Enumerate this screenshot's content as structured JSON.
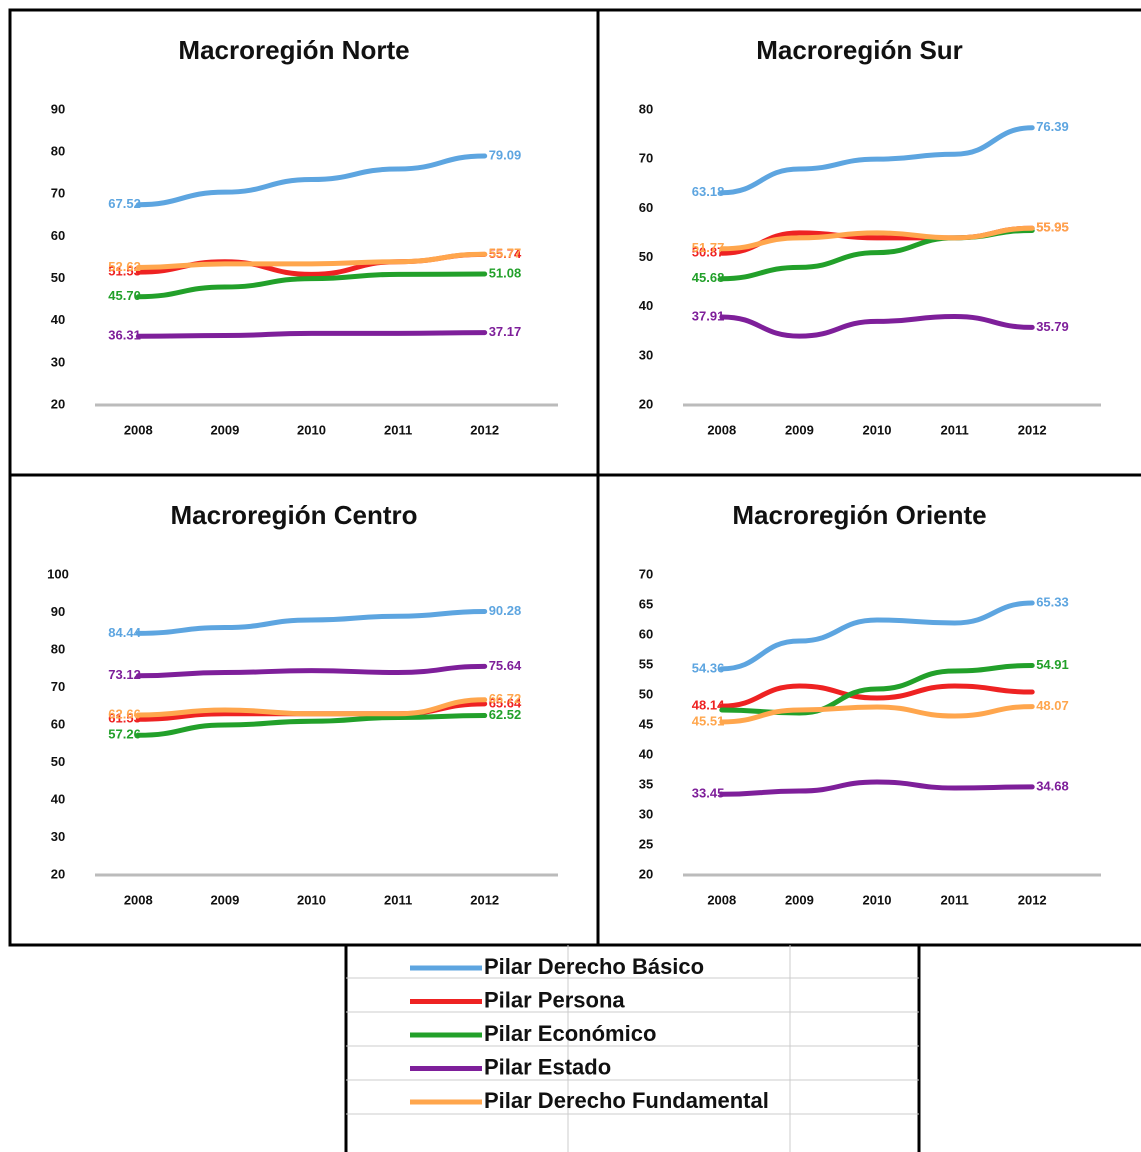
{
  "chart_data": [
    {
      "type": "line",
      "title": "Macroregión Norte",
      "categories": [
        "2008",
        "2009",
        "2010",
        "2011",
        "2012"
      ],
      "ylim": [
        20,
        90
      ],
      "yticks": [
        20,
        30,
        40,
        50,
        60,
        70,
        80,
        90
      ],
      "series": [
        {
          "name": "Pilar Derecho Básico",
          "color": "#5da5e0",
          "values": [
            67.52,
            70.5,
            73.5,
            76,
            79.09
          ],
          "value_labels": [
            "67.52",
            null,
            null,
            null,
            "79.09"
          ]
        },
        {
          "name": "Pilar Persona",
          "color": "#ee2222",
          "values": [
            51.53,
            54,
            51,
            54,
            55.74
          ],
          "value_labels": [
            "51.53",
            null,
            null,
            null,
            "55.74"
          ]
        },
        {
          "name": "Pilar Económico",
          "color": "#22a02a",
          "values": [
            45.7,
            48,
            50,
            51,
            51.08
          ],
          "value_labels": [
            "45.70",
            null,
            null,
            null,
            "51.08"
          ]
        },
        {
          "name": "Pilar Estado",
          "color": "#7e1f9a",
          "values": [
            36.31,
            36.5,
            37,
            37,
            37.17
          ],
          "value_labels": [
            "36.31",
            null,
            null,
            null,
            "37.17"
          ]
        },
        {
          "name": "Pilar Derecho Fundamental",
          "color": "#ffa64d",
          "values": [
            52.62,
            53.5,
            53.5,
            54,
            55.77
          ],
          "value_labels": [
            "52.62",
            null,
            null,
            null,
            "55.77"
          ]
        }
      ]
    },
    {
      "type": "line",
      "title": "Macroregión Sur",
      "categories": [
        "2008",
        "2009",
        "2010",
        "2011",
        "2012"
      ],
      "ylim": [
        20,
        80
      ],
      "yticks": [
        20,
        30,
        40,
        50,
        60,
        70,
        80
      ],
      "series": [
        {
          "name": "Pilar Derecho Básico",
          "color": "#5da5e0",
          "values": [
            63.18,
            68,
            70,
            71,
            76.39
          ],
          "value_labels": [
            "63.18",
            null,
            null,
            null,
            "76.39"
          ]
        },
        {
          "name": "Pilar Persona",
          "color": "#ee2222",
          "values": [
            50.87,
            55,
            54,
            54,
            55.95
          ],
          "value_labels": [
            "50.87",
            null,
            null,
            null,
            "55.95"
          ]
        },
        {
          "name": "Pilar Económico",
          "color": "#22a02a",
          "values": [
            45.68,
            48,
            51,
            54,
            55.5
          ],
          "value_labels": [
            "45.68",
            null,
            null,
            null,
            null
          ]
        },
        {
          "name": "Pilar Estado",
          "color": "#7e1f9a",
          "values": [
            37.91,
            34,
            37,
            38,
            35.79
          ],
          "value_labels": [
            "37.91",
            null,
            null,
            null,
            "35.79"
          ]
        },
        {
          "name": "Pilar Derecho Fundamental",
          "color": "#ffa64d",
          "values": [
            51.77,
            54,
            55,
            54,
            55.95
          ],
          "value_labels": [
            "51.77",
            null,
            null,
            null,
            "55.95"
          ]
        }
      ]
    },
    {
      "type": "line",
      "title": "Macroregión Centro",
      "categories": [
        "2008",
        "2009",
        "2010",
        "2011",
        "2012"
      ],
      "ylim": [
        20,
        100
      ],
      "yticks": [
        20,
        30,
        40,
        50,
        60,
        70,
        80,
        90,
        100
      ],
      "series": [
        {
          "name": "Pilar Derecho Básico",
          "color": "#5da5e0",
          "values": [
            84.44,
            86,
            88,
            89,
            90.28
          ],
          "value_labels": [
            "84.44",
            null,
            null,
            null,
            "90.28"
          ]
        },
        {
          "name": "Pilar Persona",
          "color": "#ee2222",
          "values": [
            61.53,
            63,
            63,
            63,
            65.64
          ],
          "value_labels": [
            "61.53",
            null,
            null,
            null,
            "65.64"
          ]
        },
        {
          "name": "Pilar Económico",
          "color": "#22a02a",
          "values": [
            57.26,
            60,
            61,
            62,
            62.52
          ],
          "value_labels": [
            "57.26",
            null,
            null,
            null,
            "62.52"
          ]
        },
        {
          "name": "Pilar Estado",
          "color": "#7e1f9a",
          "values": [
            73.12,
            74,
            74.5,
            74,
            75.64
          ],
          "value_labels": [
            "73.12",
            null,
            null,
            null,
            "75.64"
          ]
        },
        {
          "name": "Pilar Derecho Fundamental",
          "color": "#ffa64d",
          "values": [
            62.66,
            64,
            63,
            63,
            66.72
          ],
          "value_labels": [
            "62.66",
            null,
            null,
            null,
            "66.72"
          ]
        }
      ]
    },
    {
      "type": "line",
      "title": "Macroregión Oriente",
      "categories": [
        "2008",
        "2009",
        "2010",
        "2011",
        "2012"
      ],
      "ylim": [
        20,
        70
      ],
      "yticks": [
        20,
        25,
        30,
        35,
        40,
        45,
        50,
        55,
        60,
        65,
        70
      ],
      "series": [
        {
          "name": "Pilar Derecho Básico",
          "color": "#5da5e0",
          "values": [
            54.36,
            59,
            62.5,
            62,
            65.33
          ],
          "value_labels": [
            "54.36",
            null,
            null,
            null,
            "65.33"
          ]
        },
        {
          "name": "Pilar Persona",
          "color": "#ee2222",
          "values": [
            48.14,
            51.5,
            49.5,
            51.5,
            50.5
          ],
          "value_labels": [
            "48.14",
            null,
            null,
            null,
            null
          ]
        },
        {
          "name": "Pilar Económico",
          "color": "#22a02a",
          "values": [
            47.5,
            47,
            51,
            54,
            54.91
          ],
          "value_labels": [
            null,
            null,
            null,
            null,
            "54.91"
          ]
        },
        {
          "name": "Pilar Estado",
          "color": "#7e1f9a",
          "values": [
            33.45,
            34,
            35.5,
            34.5,
            34.68
          ],
          "value_labels": [
            "33.45",
            null,
            null,
            null,
            "34.68"
          ]
        },
        {
          "name": "Pilar Derecho Fundamental",
          "color": "#ffa64d",
          "values": [
            45.51,
            47.5,
            48,
            46.5,
            48.07
          ],
          "value_labels": [
            "45.51",
            null,
            null,
            null,
            "48.07"
          ]
        }
      ]
    }
  ]
}
